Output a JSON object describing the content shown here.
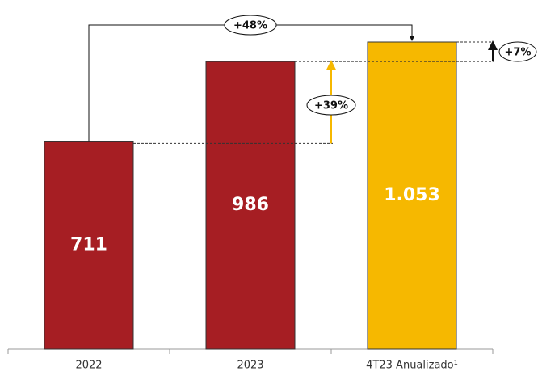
{
  "chart_data": {
    "type": "bar",
    "categories": [
      "2022",
      "2023",
      "4T23 Anualizado¹"
    ],
    "values": [
      711,
      986,
      1053
    ],
    "value_labels": [
      "711",
      "986",
      "1.053"
    ],
    "colors": [
      "#a61e23",
      "#a61e23",
      "#f6b800"
    ],
    "annotations": [
      "+48%",
      "+39%",
      "+7%"
    ]
  }
}
